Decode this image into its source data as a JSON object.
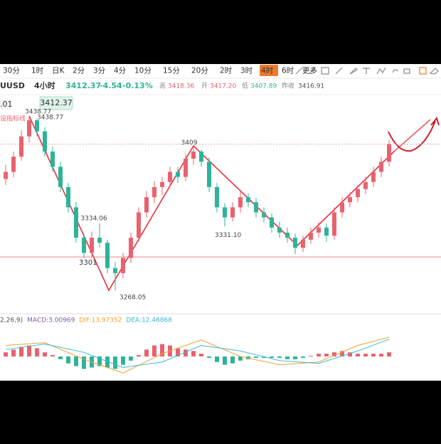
{
  "toolbar": {
    "periods": [
      "30分",
      "1时",
      "日K",
      "2分",
      "3分",
      "4分",
      "10分",
      "15分",
      "20分",
      "2时",
      "3时",
      "4时",
      "6时"
    ],
    "active": 11,
    "more": "更多"
  },
  "header": {
    "symbol": "UUSD",
    "period": "4小时",
    "price": "3412.37",
    "change": "-4.54",
    "change_pct": "-0.13%",
    "high_label": "高",
    "high": "3418.36",
    "open_label": "开",
    "open": "3417.20",
    "low_label": "低",
    "low": "3407.89",
    "prev_label": "昨收",
    "prev": "3416.91"
  },
  "left": {
    "price_input": ".01",
    "price_badge": "3412.37",
    "indicator": "设指标线"
  },
  "chart_data": [
    {
      "type": "candlestick",
      "candles": [
        [
          3378,
          3392,
          3372,
          3385
        ],
        [
          3385,
          3405,
          3380,
          3400
        ],
        [
          3400,
          3426,
          3396,
          3420
        ],
        [
          3420,
          3438.77,
          3414,
          3436
        ],
        [
          3436,
          3437,
          3420,
          3425
        ],
        [
          3425,
          3429,
          3400,
          3405
        ],
        [
          3405,
          3410,
          3385,
          3390
        ],
        [
          3390,
          3395,
          3365,
          3370
        ],
        [
          3370,
          3374,
          3345,
          3350
        ],
        [
          3350,
          3355,
          3315,
          3320
        ],
        [
          3320,
          3324,
          3300,
          3305
        ],
        [
          3305,
          3326,
          3301,
          3320
        ],
        [
          3320,
          3334.06,
          3310,
          3315
        ],
        [
          3315,
          3318,
          3285,
          3290
        ],
        [
          3290,
          3296,
          3268.05,
          3285
        ],
        [
          3285,
          3305,
          3280,
          3300
        ],
        [
          3300,
          3325,
          3295,
          3320
        ],
        [
          3320,
          3350,
          3316,
          3345
        ],
        [
          3345,
          3366,
          3340,
          3360
        ],
        [
          3360,
          3376,
          3354,
          3370
        ],
        [
          3370,
          3380,
          3362,
          3375
        ],
        [
          3375,
          3390,
          3370,
          3385
        ],
        [
          3385,
          3390,
          3374,
          3380
        ],
        [
          3380,
          3403,
          3376,
          3398
        ],
        [
          3398,
          3409,
          3392,
          3405
        ],
        [
          3405,
          3407,
          3390,
          3395
        ],
        [
          3395,
          3399,
          3365,
          3370
        ],
        [
          3370,
          3374,
          3345,
          3350
        ],
        [
          3350,
          3354,
          3331.1,
          3340
        ],
        [
          3340,
          3355,
          3336,
          3350
        ],
        [
          3350,
          3366,
          3345,
          3360
        ],
        [
          3360,
          3364,
          3350,
          3355
        ],
        [
          3355,
          3359,
          3340,
          3345
        ],
        [
          3345,
          3350,
          3335,
          3340
        ],
        [
          3340,
          3344,
          3325,
          3330
        ],
        [
          3330,
          3336,
          3320,
          3325
        ],
        [
          3325,
          3330,
          3315,
          3320
        ],
        [
          3320,
          3324,
          3304,
          3310
        ],
        [
          3310,
          3322,
          3306,
          3318
        ],
        [
          3318,
          3330,
          3314,
          3325
        ],
        [
          3325,
          3335,
          3320,
          3330
        ],
        [
          3330,
          3334,
          3316,
          3322
        ],
        [
          3322,
          3350,
          3318,
          3345
        ],
        [
          3345,
          3360,
          3340,
          3355
        ],
        [
          3355,
          3365,
          3350,
          3360
        ],
        [
          3360,
          3372,
          3355,
          3368
        ],
        [
          3368,
          3380,
          3363,
          3375
        ],
        [
          3375,
          3390,
          3370,
          3385
        ],
        [
          3385,
          3400,
          3380,
          3395
        ],
        [
          3395,
          3416,
          3390,
          3412.37
        ]
      ],
      "up_color": "#e8626e",
      "down_color": "#2eb39a",
      "ylim": [
        3245.57,
        3459.85
      ],
      "annotations": [
        {
          "value": 3438.77,
          "label": "3438.77"
        },
        {
          "value": 3438.77,
          "label": "3438.77"
        },
        {
          "value": 3334.06,
          "label": "3334.06"
        },
        {
          "value": 3268.05,
          "label": "3268.05"
        },
        {
          "value": 3409,
          "label": "3409"
        },
        {
          "value": 3331.1,
          "label": "3331.10"
        }
      ],
      "levels": [
        3301
      ],
      "last": 3412.37
    },
    {
      "type": "macd",
      "legend": [
        "2,26,9)",
        "MACD:3.00969",
        "DIF:13.97352",
        "DEA:12.46868"
      ],
      "histogram": [
        3,
        5,
        7,
        8,
        6,
        3,
        1,
        -2,
        -5,
        -7,
        -9,
        -8,
        -7,
        -8,
        -9,
        -6,
        -3,
        1,
        5,
        8,
        9,
        8,
        6,
        5,
        4,
        2,
        -1,
        -4,
        -6,
        -5,
        -3,
        -2,
        -1,
        -1,
        -1,
        -1,
        -2,
        -2,
        -1,
        0.5,
        2,
        2,
        3,
        4,
        3,
        2,
        2,
        2,
        2,
        3.00969
      ],
      "x": [
        0,
        5,
        10,
        15,
        20,
        25,
        30,
        35,
        40,
        45,
        49
      ],
      "series": [
        {
          "name": "DIF",
          "color": "#f0a030",
          "values": [
            8,
            10,
            -2,
            -12,
            2,
            12,
            0,
            -6,
            -4,
            8,
            13.97352
          ]
        },
        {
          "name": "DEA",
          "color": "#3ab8d8",
          "values": [
            5,
            9,
            3,
            -8,
            -4,
            8,
            4,
            -3,
            -5,
            4,
            12.46868
          ]
        }
      ],
      "ylim": [
        -16,
        16
      ]
    }
  ]
}
